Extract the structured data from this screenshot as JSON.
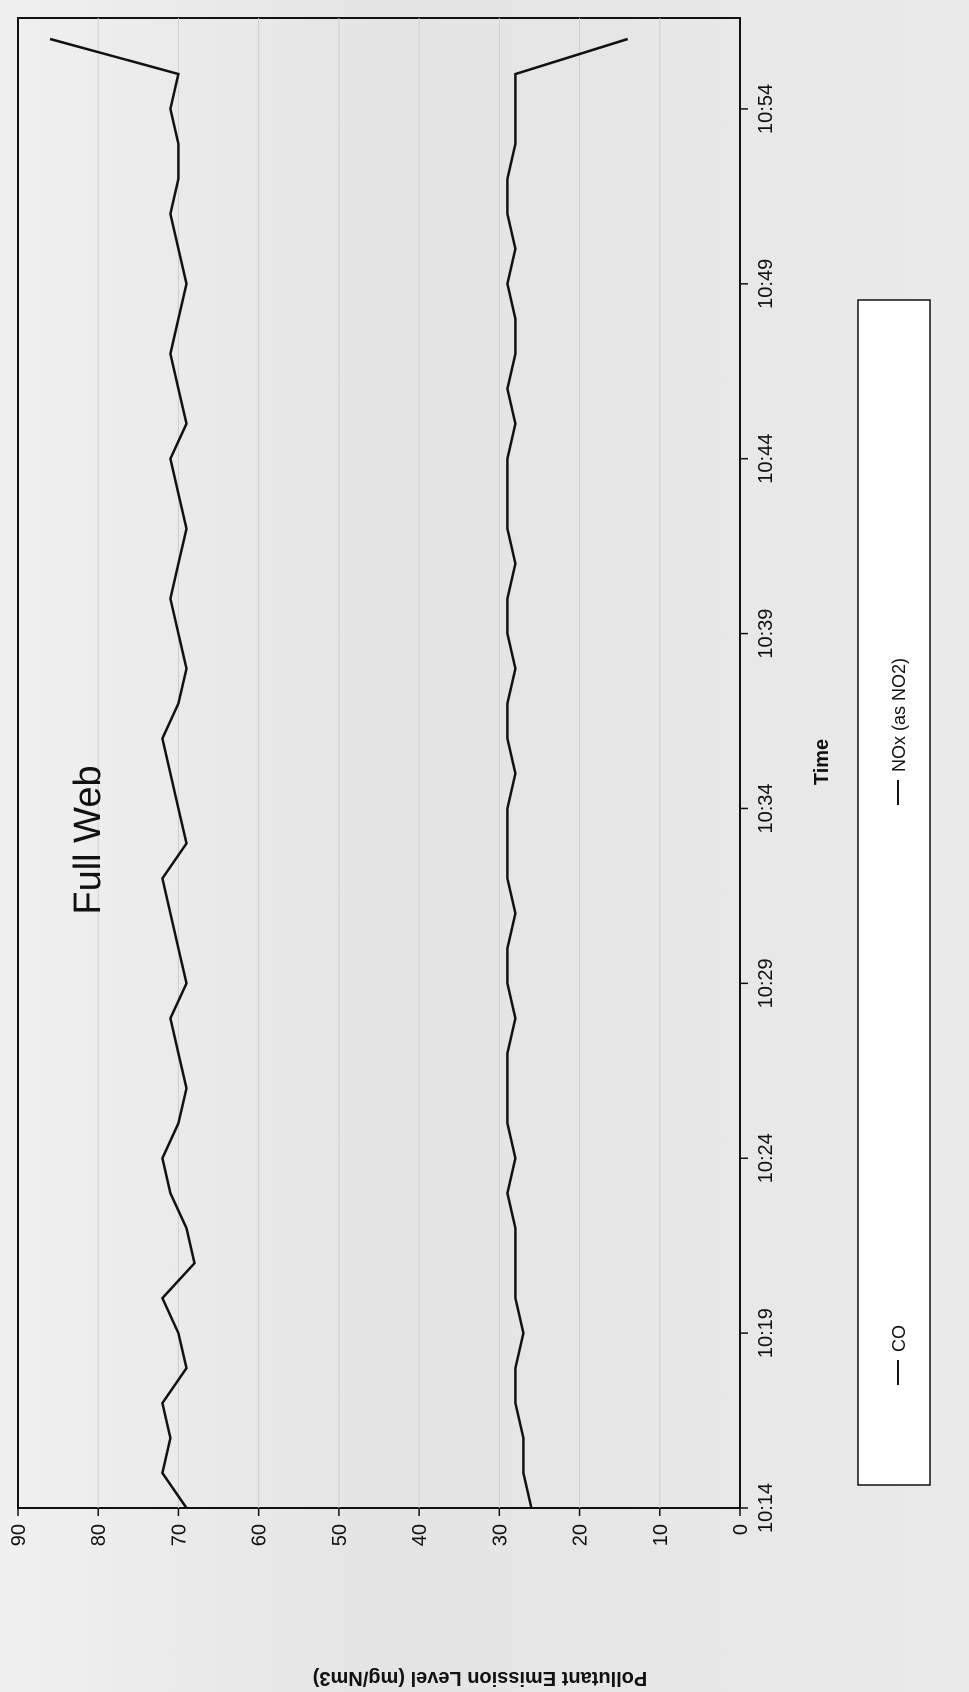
{
  "chart_data": {
    "type": "line",
    "title": "Full Web",
    "xlabel": "Time",
    "ylabel": "Pollutant Emission Level (mg/Nm3)",
    "ylim": [
      0,
      90
    ],
    "y_ticks": [
      "0",
      "10",
      "20",
      "30",
      "40",
      "50",
      "60",
      "70",
      "80",
      "90"
    ],
    "x_tick_labels": [
      "10:14",
      "10:19",
      "10:24",
      "10:29",
      "10:34",
      "10:39",
      "10:44",
      "10:49",
      "10:54"
    ],
    "grid": true,
    "legend_position": "right",
    "x": [
      "10:14",
      "10:15",
      "10:16",
      "10:17",
      "10:18",
      "10:19",
      "10:20",
      "10:21",
      "10:22",
      "10:23",
      "10:24",
      "10:25",
      "10:26",
      "10:27",
      "10:28",
      "10:29",
      "10:30",
      "10:31",
      "10:32",
      "10:33",
      "10:34",
      "10:35",
      "10:36",
      "10:37",
      "10:38",
      "10:39",
      "10:40",
      "10:41",
      "10:42",
      "10:43",
      "10:44",
      "10:45",
      "10:46",
      "10:47",
      "10:48",
      "10:49",
      "10:50",
      "10:51",
      "10:52",
      "10:53",
      "10:54",
      "10:55",
      "10:56"
    ],
    "series": [
      {
        "name": "CO",
        "color": "#111111",
        "values": [
          69,
          72,
          71,
          72,
          69,
          70,
          72,
          68,
          69,
          71,
          72,
          70,
          69,
          70,
          71,
          69,
          70,
          71,
          72,
          69,
          70,
          71,
          72,
          70,
          69,
          70,
          71,
          70,
          69,
          70,
          71,
          69,
          70,
          71,
          70,
          69,
          70,
          71,
          70,
          70,
          71,
          70,
          86
        ]
      },
      {
        "name": "NOx (as NO2)",
        "color": "#111111",
        "values": [
          26,
          27,
          27,
          28,
          28,
          27,
          28,
          28,
          28,
          29,
          28,
          29,
          29,
          29,
          28,
          29,
          29,
          28,
          29,
          29,
          29,
          28,
          29,
          29,
          28,
          29,
          29,
          28,
          29,
          29,
          29,
          28,
          29,
          28,
          28,
          29,
          28,
          29,
          29,
          28,
          28,
          28,
          14
        ]
      }
    ]
  },
  "annotations": {
    "top_edge_value": "10:56"
  }
}
